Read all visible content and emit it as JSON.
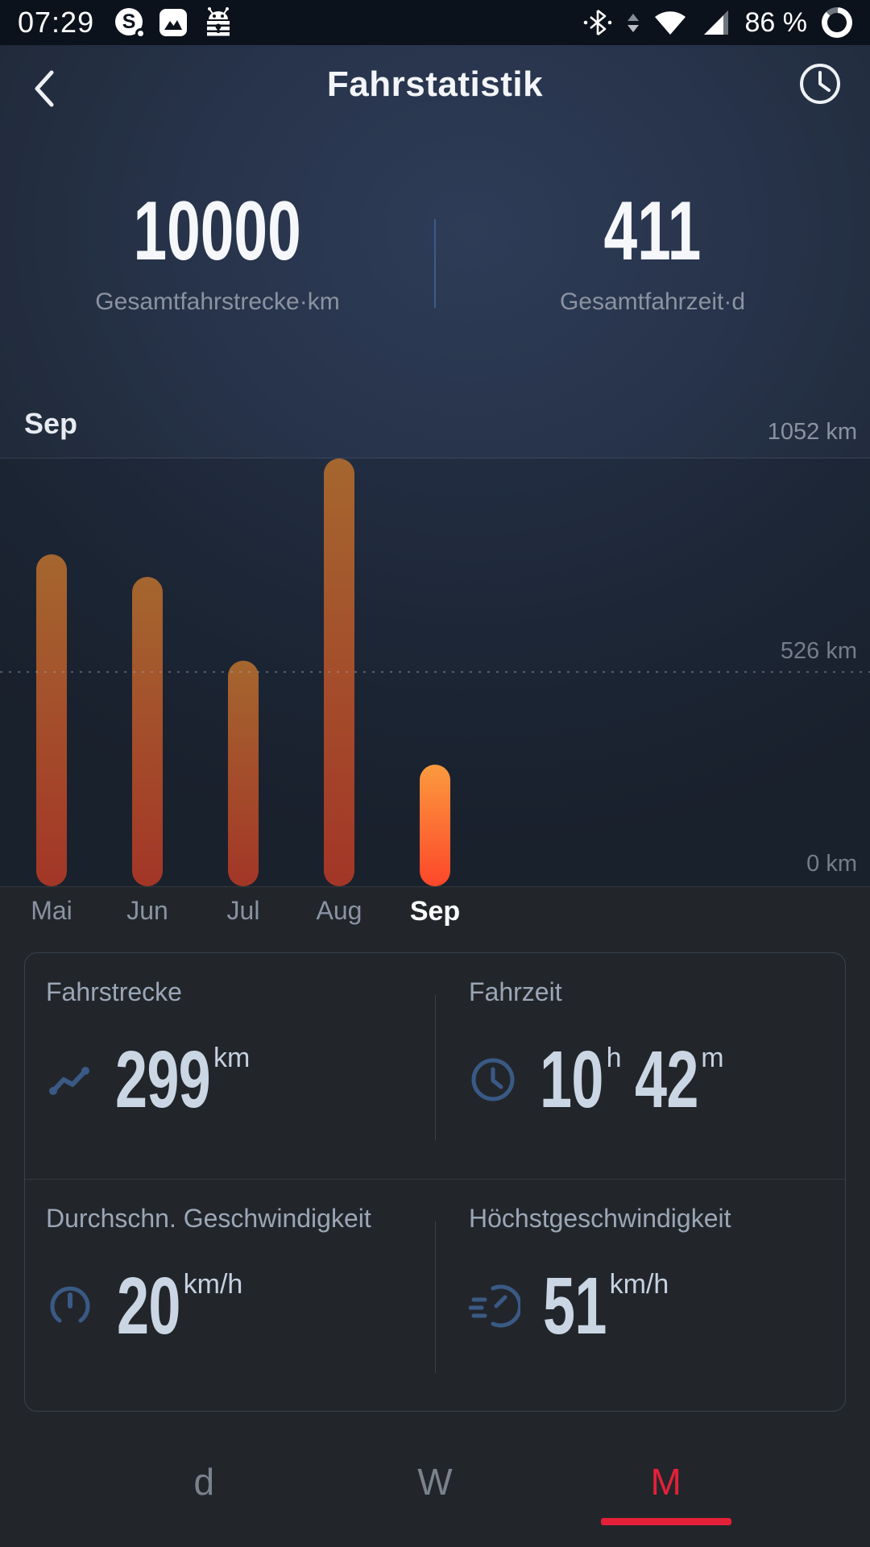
{
  "status_bar": {
    "time": "07:29",
    "battery_percent": "86 %",
    "left_icons": [
      "s-badge-icon",
      "gallery-icon",
      "keepass-icon"
    ],
    "right_icons": [
      "bluetooth-icon",
      "network-arrows-icon",
      "wifi-icon",
      "signal-icon",
      "battery-ring-icon"
    ]
  },
  "header": {
    "title": "Fahrstatistik",
    "back_icon": "back-chevron-icon",
    "history_icon": "clock-icon"
  },
  "totals": {
    "distance_value": "10000",
    "distance_label": "Gesamtfahrstrecke·km",
    "time_value": "411",
    "time_label": "Gesamtfahrzeit·d"
  },
  "chart_data": {
    "type": "bar",
    "title": "Sep",
    "categories": [
      "Mai",
      "Jun",
      "Jul",
      "Aug",
      "Sep"
    ],
    "values": [
      817,
      761,
      554,
      1052,
      299
    ],
    "unit": "km",
    "selected_index": 4,
    "ylim": [
      0,
      1052
    ],
    "y_axis_labels": [
      "1052 km",
      "526 km",
      "0 km"
    ],
    "gridlines": {
      "top": "solid",
      "middle": "dotted",
      "bottom": "solid"
    },
    "legend": "none",
    "bar_gradient_top": "#a5662f",
    "bar_gradient_bottom": "#a33627",
    "selected_bar_gradient_top": "#fb9a3e",
    "selected_bar_gradient_bottom": "#fd472a"
  },
  "details": {
    "cards": [
      {
        "label": "Fahrstrecke",
        "icon": "trend-icon",
        "value": "299",
        "unit": "km",
        "value2": "",
        "unit2": ""
      },
      {
        "label": "Fahrzeit",
        "icon": "clock-icon",
        "value": "10",
        "unit": "h",
        "value2": "42",
        "unit2": "m"
      },
      {
        "label": "Durchschn. Geschwindigkeit",
        "icon": "gauge-icon",
        "value": "20",
        "unit": "km/h",
        "value2": "",
        "unit2": ""
      },
      {
        "label": "Höchstgeschwindigkeit",
        "icon": "speedometer-icon",
        "value": "51",
        "unit": "km/h",
        "value2": "",
        "unit2": ""
      }
    ]
  },
  "tabs": [
    {
      "label": "d",
      "selected": false
    },
    {
      "label": "W",
      "selected": false
    },
    {
      "label": "M",
      "selected": true
    }
  ],
  "colors": {
    "accent_red": "#e42039",
    "icon_blue": "#3d6498",
    "value_text": "#cbd6e4",
    "muted_text": "#8b95a5",
    "status_bar_bg": "#0c121b",
    "background_top": "#2e3c57",
    "background_bottom": "#22262b"
  }
}
